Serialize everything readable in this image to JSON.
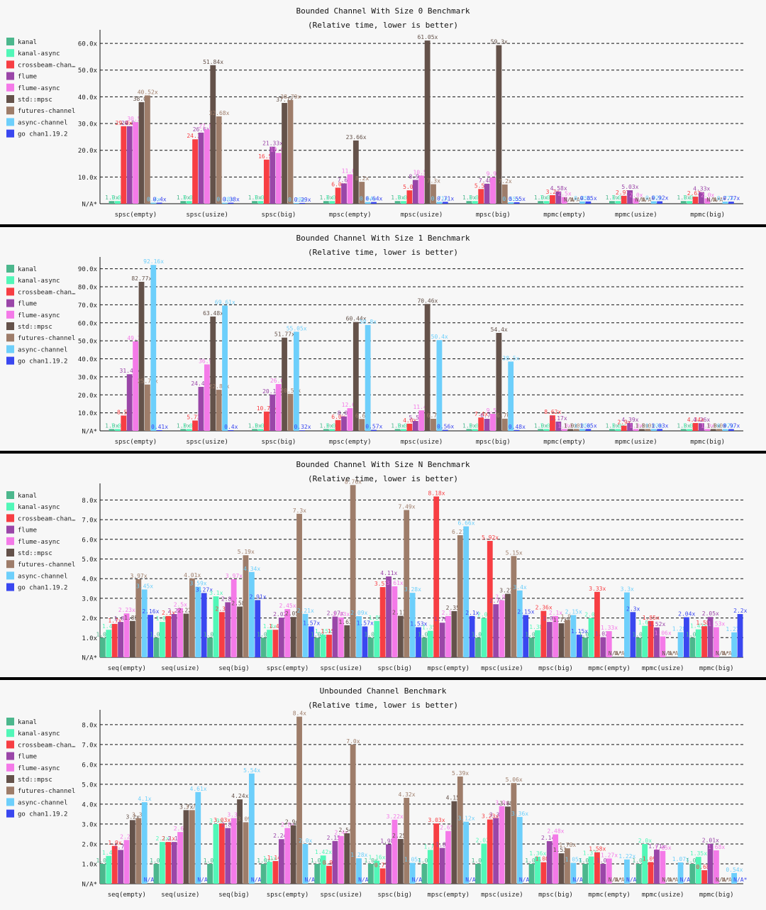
{
  "legend": [
    "kanal",
    "kanal-async",
    "crossbeam-chan…",
    "flume",
    "flume-async",
    "std::mpsc",
    "futures-channel",
    "async-channel",
    "go chan1.19.2"
  ],
  "colors": [
    "#4cb78d",
    "#52f7b8",
    "#f73e43",
    "#9a46a8",
    "#f47ae8",
    "#64524a",
    "#9e7d6a",
    "#6dcffb",
    "#3a47f0"
  ],
  "na_label": "N/A*",
  "chart_data": [
    {
      "type": "bar",
      "title": "Bounded Channel With Size 0 Benchmark",
      "subtitle": "(Relative time, lower is better)",
      "ymax": 64,
      "yticks": [
        10,
        20,
        30,
        40,
        50,
        60
      ],
      "yticklabels": [
        "10.0x",
        "20.0x",
        "30.0x",
        "40.0x",
        "50.0x",
        "60.0x"
      ],
      "categories": [
        "spsc(empty)",
        "spsc(usize)",
        "spsc(big)",
        "mpsc(empty)",
        "mpsc(usize)",
        "mpsc(big)",
        "mpmc(empty)",
        "mpmc(usize)",
        "mpmc(big)"
      ],
      "values": [
        [
          1.0,
          1.0,
          29.0,
          29.0,
          30.5,
          38.0,
          40.52,
          0.4,
          0.4
        ],
        [
          1.0,
          1.0,
          24.1,
          26.6,
          27.8,
          51.84,
          32.68,
          0.38,
          0.38
        ],
        [
          1.0,
          1.0,
          16.5,
          21.33,
          19.0,
          37.7,
          38.79,
          0.29,
          0.29
        ],
        [
          1.0,
          1.0,
          6.0,
          7.6,
          11.0,
          23.66,
          8.2,
          0.64,
          0.64
        ],
        [
          1.0,
          1.0,
          5.0,
          8.9,
          10.5,
          61.05,
          7.3,
          0.71,
          0.71
        ],
        [
          1.0,
          1.0,
          5.5,
          7.48,
          9.9,
          59.3,
          7.2,
          0.55,
          0.55
        ],
        [
          1.0,
          1.0,
          3.2,
          4.58,
          2.5,
          null,
          null,
          0.85,
          0.85
        ],
        [
          1.0,
          1.0,
          2.97,
          5.03,
          2.0,
          null,
          null,
          0.92,
          0.92
        ],
        [
          1.0,
          1.0,
          2.63,
          4.33,
          2.0,
          null,
          null,
          0.77,
          0.77
        ]
      ],
      "labels": [
        [
          "1.0x",
          "1.0x",
          "29.0x",
          "29.0x",
          "30.5x",
          "38.0x",
          "40.52x",
          "0.4x",
          "0.4x"
        ],
        [
          "1.0x",
          "1.0x",
          "24.1x",
          "26.6x",
          "27.8x",
          "51.84x",
          "32.68x",
          "0.38x",
          "0.38x"
        ],
        [
          "1.0x",
          "1.0x",
          "16.5x",
          "21.33x",
          "19.0x",
          "37.7x",
          "38.79x",
          "0.29x",
          "0.29x"
        ],
        [
          "1.0x",
          "1.0x",
          "6.0x",
          "7.6x",
          "11.0x",
          "23.66x",
          "8.2x",
          "0.64x",
          "0.64x"
        ],
        [
          "1.0x",
          "1.0x",
          "5.0x",
          "8.9x",
          "10.5x",
          "61.05x",
          "7.3x",
          "0.71x",
          "0.71x"
        ],
        [
          "1.0x",
          "1.0x",
          "5.5x",
          "7.48x",
          "9.9x",
          "59.3x",
          "7.2x",
          "0.55x",
          "0.55x"
        ],
        [
          "1.0x",
          "1.0x",
          "3.2x",
          "4.58x",
          "2.5x",
          "N/A*",
          "N/A*",
          "0.85x",
          "0.85x"
        ],
        [
          "1.0x",
          "1.0x",
          "2.97x",
          "5.03x",
          "2.0x",
          "N/A*",
          "N/A*",
          "0.92x",
          "0.92x"
        ],
        [
          "1.0x",
          "1.0x",
          "2.63x",
          "4.33x",
          "2.0x",
          "N/A*",
          "N/A*",
          "0.77x",
          "0.77x"
        ]
      ]
    },
    {
      "type": "bar",
      "title": "Bounded Channel With Size 1 Benchmark",
      "subtitle": "(Relative time, lower is better)",
      "ymax": 95,
      "yticks": [
        10,
        20,
        30,
        40,
        50,
        60,
        70,
        80,
        90
      ],
      "yticklabels": [
        "10.0x",
        "20.0x",
        "30.0x",
        "40.0x",
        "50.0x",
        "60.0x",
        "70.0x",
        "80.0x",
        "90.0x"
      ],
      "categories": [
        "spsc(empty)",
        "spsc(usize)",
        "spsc(big)",
        "mpsc(empty)",
        "mpsc(usize)",
        "mpsc(big)",
        "mpmc(empty)",
        "mpmc(usize)",
        "mpmc(big)"
      ],
      "values": [
        [
          1.0,
          1.0,
          8.5,
          31.45,
          49.7,
          82.77,
          25.73,
          92.16,
          0.41
        ],
        [
          1.0,
          1.0,
          5.73,
          24.43,
          36.9,
          63.48,
          22.82,
          69.61,
          0.4
        ],
        [
          1.0,
          1.0,
          10.72,
          20.17,
          26.0,
          51.77,
          20.58,
          55.05,
          0.32
        ],
        [
          1.0,
          1.0,
          6.0,
          8.0,
          12.6,
          60.44,
          6.6,
          58.8,
          0.57
        ],
        [
          1.0,
          1.0,
          4.0,
          5.5,
          11.4,
          70.46,
          6.7,
          50.4,
          0.56
        ],
        [
          1.0,
          1.0,
          7.4,
          6.7,
          9.5,
          54.4,
          6.76,
          38.5,
          0.48
        ],
        [
          1.0,
          1.0,
          8.62,
          5.17,
          1.0,
          1.0,
          1.0,
          1.05,
          1.05
        ],
        [
          1.0,
          1.0,
          2.9,
          4.39,
          1.0,
          1.0,
          1.0,
          1.03,
          1.03
        ],
        [
          1.0,
          1.0,
          4.34,
          4.26,
          1.0,
          1.0,
          1.0,
          0.97,
          0.97
        ]
      ],
      "labels": [
        [
          "1.0x",
          "1.0x",
          "8.5x",
          "31.45x",
          "49.7x",
          "82.77x",
          "25.73x",
          "92.16x",
          "0.41x"
        ],
        [
          "1.0x",
          "1.0x",
          "5.73x",
          "24.43x",
          "36.9x",
          "63.48x",
          "22.82x",
          "69.61x",
          "0.4x"
        ],
        [
          "1.0x",
          "1.0x",
          "10.72x",
          "20.17x",
          "26.0x",
          "51.77x",
          "20.58x",
          "55.05x",
          "0.32x"
        ],
        [
          "1.0x",
          "1.0x",
          "6.0x",
          "8.0x",
          "12.6x",
          "60.44x",
          "6.6x",
          "58.8x",
          "0.57x"
        ],
        [
          "1.0x",
          "1.0x",
          "4.0x",
          "5.5x",
          "11.4x",
          "70.46x",
          "6.7x",
          "50.4x",
          "0.56x"
        ],
        [
          "1.0x",
          "1.0x",
          "7.4x",
          "6.7x",
          "9.5x",
          "54.4x",
          "6.76x",
          "38.5x",
          "0.48x"
        ],
        [
          "1.0x",
          "1.0x",
          "8.62x",
          "5.17x",
          "1.0x",
          "1.0x",
          "1.0x",
          "1.05x",
          "1.05x"
        ],
        [
          "1.0x",
          "1.0x",
          "2.9x",
          "4.39x",
          "1.0x",
          "1.0x",
          "1.0x",
          "1.03x",
          "1.03x"
        ],
        [
          "1.0x",
          "1.0x",
          "4.34x",
          "4.26x",
          "1.0x",
          "1.0x",
          "1.0x",
          "0.97x",
          "0.97x"
        ]
      ]
    },
    {
      "type": "bar",
      "title": "Bounded Channel With Size N Benchmark",
      "subtitle": "(Relative time, lower is better)",
      "ymax": 8.7,
      "yticks": [
        1,
        2,
        3,
        4,
        5,
        6,
        7,
        8
      ],
      "yticklabels": [
        "1.0x",
        "2.0x",
        "3.0x",
        "4.0x",
        "5.0x",
        "6.0x",
        "7.0x",
        "8.0x"
      ],
      "categories": [
        "seq(empty)",
        "seq(usize)",
        "seq(big)",
        "spsc(empty)",
        "spsc(usize)",
        "spsc(big)",
        "mpsc(empty)",
        "mpsc(usize)",
        "mpsc(big)",
        "mpmc(empty)",
        "mpmc(usize)",
        "mpmc(big)"
      ],
      "values": [
        [
          1.0,
          1.4,
          1.7,
          1.8,
          2.23,
          1.85,
          3.97,
          3.45,
          2.16
        ],
        [
          1.0,
          1.8,
          2.1,
          2.2,
          2.5,
          2.22,
          4.01,
          3.59,
          3.27
        ],
        [
          1.0,
          3.1,
          2.3,
          2.8,
          3.97,
          2.58,
          5.19,
          4.34,
          2.91
        ],
        [
          1.0,
          1.4,
          1.4,
          2.02,
          2.45,
          2.05,
          7.3,
          2.21,
          1.57
        ],
        [
          1.0,
          1.15,
          1.15,
          2.07,
          2.03,
          1.63,
          8.76,
          2.09,
          1.57
        ],
        [
          1.0,
          1.85,
          3.57,
          4.11,
          3.61,
          2.11,
          7.49,
          3.28,
          1.53
        ],
        [
          1.0,
          1.35,
          8.18,
          1.76,
          2.1,
          2.35,
          6.21,
          6.66,
          2.1
        ],
        [
          1.0,
          2.0,
          5.92,
          2.7,
          2.9,
          3.23,
          5.15,
          3.4,
          2.15
        ],
        [
          1.0,
          1.38,
          2.36,
          1.8,
          2.1,
          1.73,
          1.9,
          2.15,
          1.15
        ],
        [
          1.0,
          2.0,
          3.33,
          1.02,
          1.33,
          null,
          null,
          3.3,
          2.3
        ],
        [
          1.0,
          1.6,
          1.85,
          1.52,
          1.06,
          null,
          null,
          1.28,
          2.04
        ],
        [
          1.0,
          1.42,
          1.58,
          2.05,
          1.53,
          null,
          null,
          1.27,
          2.2
        ]
      ],
      "labels": [
        [
          "1.0x",
          "1.4x",
          "1.7x",
          "1.8x",
          "2.23x",
          "1.85x",
          "3.97x",
          "3.45x",
          "2.16x"
        ],
        [
          "1.0x",
          "1.8x",
          "2.1x",
          "2.2x",
          "2.5x",
          "2.22x",
          "4.01x",
          "3.59x",
          "3.27x"
        ],
        [
          "1.0x",
          "3.1x",
          "2.3x",
          "2.8x",
          "3.97x",
          "2.58x",
          "5.19x",
          "4.34x",
          "2.91x"
        ],
        [
          "1.0x",
          "1.4x",
          "1.4x",
          "2.02x",
          "2.45x",
          "2.05x",
          "7.3x",
          "2.21x",
          "1.57x"
        ],
        [
          "1.0x",
          "1.15x",
          "1.15x",
          "2.07x",
          "2.03x",
          "1.63x",
          "8.76x",
          "2.09x",
          "1.57x"
        ],
        [
          "1.0x",
          "1.85x",
          "3.57x",
          "4.11x",
          "3.61x",
          "2.11x",
          "7.49x",
          "3.28x",
          "1.53x"
        ],
        [
          "1.0x",
          "1.35x",
          "8.18x",
          "1.76x",
          "2.1x",
          "2.35x",
          "6.21x",
          "6.66x",
          "2.1x"
        ],
        [
          "1.0x",
          "2.0x",
          "5.92x",
          "2.7x",
          "2.9x",
          "3.23x",
          "5.15x",
          "3.4x",
          "2.15x"
        ],
        [
          "1.0x",
          "1.38x",
          "2.36x",
          "1.8x",
          "2.1x",
          "1.73x",
          "1.9x",
          "2.15x",
          "1.15x"
        ],
        [
          "1.0x",
          "2.0x",
          "3.33x",
          "1.02x",
          "1.33x",
          "N/A*",
          "N/A*",
          "3.3x",
          "2.3x"
        ],
        [
          "1.0x",
          "1.6x",
          "1.85x",
          "1.52x",
          "1.06x",
          "N/A*",
          "N/A*",
          "1.28x",
          "2.04x"
        ],
        [
          "1.0x",
          "1.42x",
          "1.58x",
          "2.05x",
          "1.53x",
          "N/A*",
          "N/A*",
          "1.27x",
          "2.2x"
        ]
      ]
    },
    {
      "type": "bar",
      "title": "Unbounded Channel Benchmark",
      "subtitle": "(Relative time, lower is better)",
      "ymax": 8.6,
      "yticks": [
        1,
        2,
        3,
        4,
        5,
        6,
        7,
        8
      ],
      "yticklabels": [
        "1.0x",
        "2.0x",
        "3.0x",
        "4.0x",
        "5.0x",
        "6.0x",
        "7.0x",
        "8.0x"
      ],
      "categories": [
        "seq(empty)",
        "seq(usize)",
        "seq(big)",
        "spsc(empty)",
        "spsc(usize)",
        "spsc(big)",
        "mpsc(empty)",
        "mpsc(usize)",
        "mpsc(big)",
        "mpmc(empty)",
        "mpmc(usize)",
        "mpmc(big)"
      ],
      "values": [
        [
          1.0,
          1.4,
          1.9,
          1.7,
          2.2,
          3.2,
          3.3,
          4.1,
          null
        ],
        [
          1.0,
          2.1,
          2.1,
          2.1,
          2.6,
          3.7,
          3.7,
          4.61,
          null
        ],
        [
          1.0,
          3.0,
          3.03,
          2.8,
          3.3,
          4.24,
          3.09,
          5.54,
          null
        ],
        [
          1.0,
          1.1,
          1.14,
          2.24,
          2.8,
          2.94,
          8.4,
          2.0,
          null
        ],
        [
          1.0,
          1.42,
          0.9,
          2.15,
          2.4,
          2.54,
          7.0,
          1.28,
          null
        ],
        [
          1.0,
          1.16,
          0.77,
          1.98,
          3.22,
          2.25,
          4.32,
          1.05,
          null
        ],
        [
          1.0,
          1.7,
          3.03,
          1.8,
          2.65,
          4.15,
          5.39,
          3.12,
          null
        ],
        [
          1.0,
          2.02,
          3.23,
          3.3,
          3.9,
          3.88,
          5.06,
          3.36,
          null
        ],
        [
          1.0,
          1.36,
          1.08,
          2.14,
          2.48,
          1.53,
          1.78,
          1.05,
          null
        ],
        [
          1.0,
          1.37,
          1.58,
          1.0,
          1.27,
          null,
          null,
          1.22,
          null
        ],
        [
          1.0,
          2.0,
          1.09,
          1.71,
          1.65,
          null,
          null,
          1.07,
          null
        ],
        [
          1.0,
          1.35,
          0.68,
          2.01,
          1.68,
          null,
          null,
          0.54,
          null
        ]
      ],
      "labels": [
        [
          "1.0x",
          "1.4x",
          "1.9x",
          "1.7x",
          "2.2x",
          "3.2x",
          "3.3x",
          "4.1x",
          "N/A*"
        ],
        [
          "1.0x",
          "2.1x",
          "2.1x",
          "2.1x",
          "2.6x",
          "3.7x",
          "3.7x",
          "4.61x",
          "N/A*"
        ],
        [
          "1.0x",
          "3.0x",
          "3.03x",
          "2.8x",
          "3.3x",
          "4.24x",
          "3.09x",
          "5.54x",
          "N/A*"
        ],
        [
          "1.0x",
          "1.1x",
          "1.14x",
          "2.24x",
          "2.8x",
          "2.94x",
          "8.4x",
          "2.0x",
          "N/A*"
        ],
        [
          "1.0x",
          "1.42x",
          "0.9x",
          "2.15x",
          "2.4x",
          "2.54x",
          "7.0x",
          "1.28x",
          "N/A*"
        ],
        [
          "1.0x",
          "1.16x",
          "0.77x",
          "1.98x",
          "3.22x",
          "2.25x",
          "4.32x",
          "1.05x",
          "N/A*"
        ],
        [
          "1.0x",
          "1.7x",
          "3.03x",
          "1.8x",
          "2.65x",
          "4.15x",
          "5.39x",
          "3.12x",
          "N/A*"
        ],
        [
          "1.0x",
          "2.02x",
          "3.23x",
          "3.3x",
          "3.9x",
          "3.88x",
          "5.06x",
          "3.36x",
          "N/A*"
        ],
        [
          "1.0x",
          "1.36x",
          "1.08x",
          "2.14x",
          "2.48x",
          "1.53x",
          "1.78x",
          "1.05x",
          "N/A*"
        ],
        [
          "1.0x",
          "1.37x",
          "1.58x",
          "1.0x",
          "1.27x",
          "N/A*",
          "N/A*",
          "1.22x",
          "N/A*"
        ],
        [
          "1.0x",
          "2.0x",
          "1.09x",
          "1.71x",
          "1.65x",
          "N/A*",
          "N/A*",
          "1.07x",
          "N/A*"
        ],
        [
          "1.0x",
          "1.35x",
          "0.68x",
          "2.01x",
          "1.68x",
          "N/A*",
          "N/A*",
          "0.54x",
          "N/A*"
        ]
      ]
    }
  ]
}
